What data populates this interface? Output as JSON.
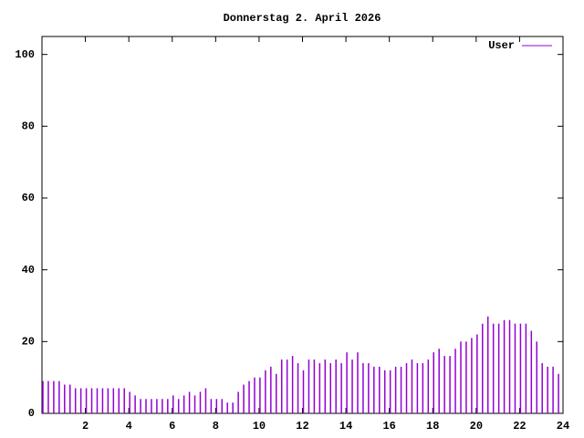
{
  "chart_data": {
    "type": "impulse",
    "title": "Donnerstag 2. April 2026",
    "series": [
      {
        "name": "User",
        "color": "#9400d3",
        "values": [
          9,
          9,
          9,
          9,
          8,
          8,
          7,
          7,
          7,
          7,
          7,
          7,
          7,
          7,
          7,
          7,
          6,
          5,
          4,
          4,
          4,
          4,
          4,
          4,
          5,
          4,
          5,
          6,
          5,
          6,
          7,
          4,
          4,
          4,
          3,
          3,
          6,
          8,
          9,
          10,
          10,
          12,
          13,
          11,
          15,
          15,
          16,
          14,
          12,
          15,
          15,
          14,
          15,
          14,
          15,
          14,
          17,
          15,
          17,
          14,
          14,
          13,
          13,
          12,
          12,
          13,
          13,
          14,
          15,
          14,
          14,
          15,
          17,
          18,
          16,
          16,
          18,
          20,
          20,
          21,
          22,
          25,
          27,
          25,
          25,
          26,
          26,
          25,
          25,
          25,
          23,
          20,
          14,
          13,
          13,
          11
        ]
      }
    ],
    "x": [
      0,
      0.25,
      0.5,
      0.75,
      1,
      1.25,
      1.5,
      1.75,
      2,
      2.25,
      2.5,
      2.75,
      3,
      3.25,
      3.5,
      3.75,
      4,
      4.25,
      4.5,
      4.75,
      5,
      5.25,
      5.5,
      5.75,
      6,
      6.25,
      6.5,
      6.75,
      7,
      7.25,
      7.5,
      7.75,
      8,
      8.25,
      8.5,
      8.75,
      9,
      9.25,
      9.5,
      9.75,
      10,
      10.25,
      10.5,
      10.75,
      11,
      11.25,
      11.5,
      11.75,
      12,
      12.25,
      12.5,
      12.75,
      13,
      13.25,
      13.5,
      13.75,
      14,
      14.25,
      14.5,
      14.75,
      15,
      15.25,
      15.5,
      15.75,
      16,
      16.25,
      16.5,
      16.75,
      17,
      17.25,
      17.5,
      17.75,
      18,
      18.25,
      18.5,
      18.75,
      19,
      19.25,
      19.5,
      19.75,
      20,
      20.25,
      20.5,
      20.75,
      21,
      21.25,
      21.5,
      21.75,
      22,
      22.25,
      22.5,
      22.75,
      23,
      23.25,
      23.5,
      23.75
    ],
    "xlim": [
      0,
      24
    ],
    "xticks": [
      2,
      4,
      6,
      8,
      10,
      12,
      14,
      16,
      18,
      20,
      22,
      24
    ],
    "ylim": [
      0,
      105
    ],
    "yticks": [
      0,
      20,
      40,
      60,
      80,
      100
    ],
    "legend": "top-right"
  }
}
